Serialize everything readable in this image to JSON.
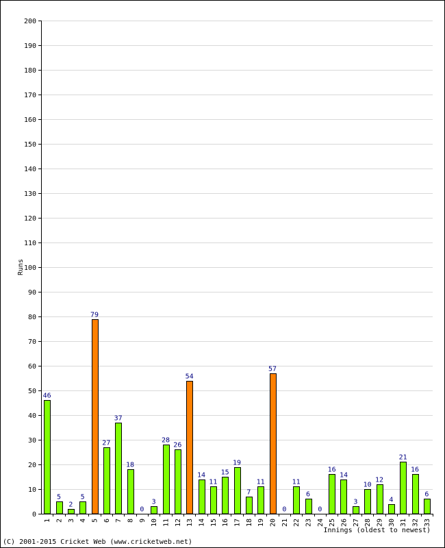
{
  "chart_data": {
    "type": "bar",
    "title": "",
    "xlabel": "Innings (oldest to newest)",
    "ylabel": "Runs",
    "ylim": [
      0,
      200
    ],
    "ytick_step": 10,
    "grid": true,
    "categories": [
      "1",
      "2",
      "3",
      "4",
      "5",
      "6",
      "7",
      "8",
      "9",
      "10",
      "11",
      "12",
      "13",
      "14",
      "15",
      "16",
      "17",
      "18",
      "19",
      "20",
      "21",
      "22",
      "23",
      "24",
      "25",
      "26",
      "27",
      "28",
      "29",
      "30",
      "31",
      "32",
      "33"
    ],
    "values": [
      46,
      5,
      2,
      5,
      79,
      27,
      37,
      18,
      0,
      3,
      28,
      26,
      54,
      14,
      11,
      15,
      19,
      7,
      11,
      57,
      0,
      11,
      6,
      0,
      16,
      14,
      3,
      10,
      12,
      4,
      21,
      16,
      6
    ],
    "highlighted": [
      false,
      false,
      false,
      false,
      true,
      false,
      false,
      false,
      false,
      false,
      false,
      false,
      true,
      false,
      false,
      false,
      false,
      false,
      false,
      true,
      false,
      false,
      false,
      false,
      false,
      false,
      false,
      false,
      false,
      false,
      false,
      false,
      false
    ],
    "colors": {
      "bar": "#80ff00",
      "highlight": "#ff8000",
      "bar_outline": "#000000",
      "data_label": "#000080",
      "grid": "#d8d8d8"
    }
  },
  "footer": {
    "copyright": "(C) 2001-2015 Cricket Web (www.cricketweb.net)"
  }
}
